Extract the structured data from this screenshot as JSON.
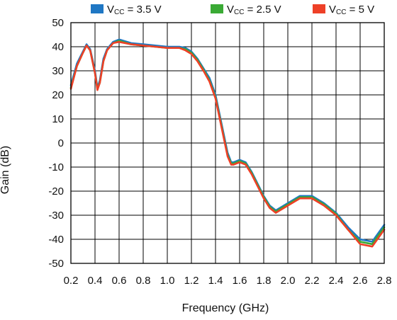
{
  "chart_data": {
    "type": "line",
    "title": "",
    "xlabel": "Frequency (GHz)",
    "ylabel": "Gain (dB)",
    "xlim": [
      0.2,
      2.8
    ],
    "ylim": [
      -50,
      50
    ],
    "x_ticks": [
      "0.2",
      "0.4",
      "0.6",
      "0.8",
      "1.0",
      "1.2",
      "1.4",
      "1.6",
      "1.8",
      "2.0",
      "2.2",
      "2.4",
      "2.6",
      "2.8"
    ],
    "y_ticks": [
      "50",
      "40",
      "30",
      "20",
      "10",
      "0",
      "-10",
      "-20",
      "-30",
      "-40",
      "-50"
    ],
    "grid": true,
    "legend_position": "top",
    "series": [
      {
        "name_main": "V",
        "name_sub": "CC",
        "name_rest": " = 3.5 V",
        "color": "#1f77c4",
        "x": [
          0.2,
          0.25,
          0.3,
          0.33,
          0.36,
          0.4,
          0.42,
          0.44,
          0.47,
          0.5,
          0.55,
          0.6,
          0.7,
          0.8,
          0.9,
          1.0,
          1.1,
          1.15,
          1.2,
          1.25,
          1.3,
          1.35,
          1.4,
          1.45,
          1.5,
          1.53,
          1.55,
          1.6,
          1.65,
          1.7,
          1.75,
          1.8,
          1.85,
          1.9,
          2.0,
          2.1,
          2.2,
          2.3,
          2.4,
          2.5,
          2.6,
          2.7,
          2.8
        ],
        "y": [
          24,
          33,
          38,
          41,
          39,
          30,
          23,
          26,
          35,
          39,
          42,
          43,
          41.5,
          41,
          40.5,
          40,
          40,
          39.5,
          38,
          35,
          31,
          27,
          20,
          8,
          -4,
          -8,
          -8,
          -7,
          -8,
          -12,
          -17,
          -22,
          -26,
          -28,
          -25,
          -22,
          -22,
          -25,
          -29,
          -35,
          -40,
          -41,
          -34
        ]
      },
      {
        "name_main": "V",
        "name_sub": "CC",
        "name_rest": " = 2.5 V",
        "color": "#3aaa35",
        "x": [
          0.2,
          0.25,
          0.3,
          0.33,
          0.36,
          0.4,
          0.42,
          0.44,
          0.47,
          0.5,
          0.55,
          0.6,
          0.7,
          0.8,
          0.9,
          1.0,
          1.1,
          1.15,
          1.2,
          1.25,
          1.3,
          1.35,
          1.4,
          1.45,
          1.5,
          1.53,
          1.55,
          1.6,
          1.65,
          1.7,
          1.75,
          1.8,
          1.85,
          1.9,
          2.0,
          2.1,
          2.2,
          2.3,
          2.4,
          2.5,
          2.6,
          2.7,
          2.8
        ],
        "y": [
          23,
          32,
          37.5,
          40.5,
          38.5,
          29,
          22.5,
          25,
          34,
          38.5,
          41.5,
          42.5,
          41,
          40.5,
          40,
          39.5,
          39.5,
          39,
          37.5,
          34.5,
          30.5,
          26,
          19,
          7,
          -5,
          -8.5,
          -8.5,
          -7.5,
          -8.5,
          -12.5,
          -17.5,
          -22.5,
          -26.5,
          -28.5,
          -25.5,
          -22.5,
          -22.5,
          -25.5,
          -29.5,
          -36,
          -41,
          -42,
          -35
        ]
      },
      {
        "name_main": "V",
        "name_sub": "CC",
        "name_rest": " = 5 V",
        "color": "#ee4027",
        "x": [
          0.2,
          0.25,
          0.3,
          0.33,
          0.36,
          0.4,
          0.42,
          0.44,
          0.47,
          0.5,
          0.55,
          0.6,
          0.7,
          0.8,
          0.9,
          1.0,
          1.1,
          1.15,
          1.2,
          1.25,
          1.3,
          1.35,
          1.4,
          1.45,
          1.5,
          1.53,
          1.55,
          1.6,
          1.65,
          1.7,
          1.75,
          1.8,
          1.85,
          1.9,
          2.0,
          2.1,
          2.2,
          2.3,
          2.4,
          2.5,
          2.6,
          2.7,
          2.8
        ],
        "y": [
          22.5,
          32,
          37.5,
          40.5,
          38.5,
          29,
          22,
          25,
          34,
          38.5,
          41.5,
          42,
          41,
          40.5,
          40,
          39.5,
          39.5,
          38.5,
          37,
          34,
          30,
          25.5,
          18.5,
          6.5,
          -5.5,
          -9,
          -9,
          -8,
          -9,
          -13,
          -18,
          -23,
          -27,
          -29,
          -26,
          -23,
          -23,
          -26,
          -30,
          -36,
          -42,
          -43,
          -36
        ]
      }
    ]
  }
}
